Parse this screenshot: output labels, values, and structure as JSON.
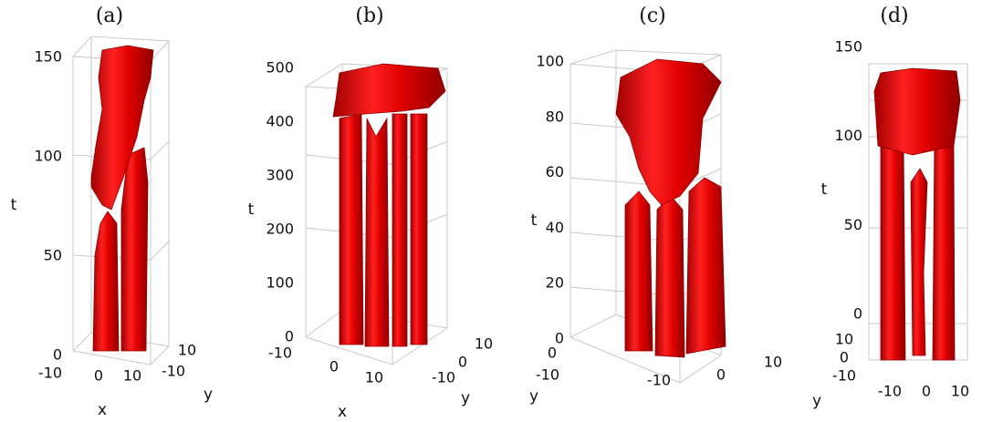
{
  "panels": [
    {
      "label": "(a)",
      "t_label": "t",
      "x_label": "x",
      "y_label": "y",
      "t_ticks": [
        0,
        50,
        100,
        150
      ],
      "x_ticks": [
        -10,
        0,
        10
      ],
      "y_ticks": [
        10,
        -10
      ]
    },
    {
      "label": "(b)",
      "t_label": "t",
      "x_label": "x",
      "y_label": "y",
      "t_ticks": [
        0,
        100,
        200,
        300,
        400,
        500
      ],
      "x_ticks": [
        -10,
        0,
        10
      ],
      "y_ticks": [
        10,
        0,
        -10
      ]
    },
    {
      "label": "(c)",
      "t_label": "t",
      "x_label": null,
      "y_label": "y",
      "t_ticks": [
        0,
        20,
        40,
        60,
        80,
        100
      ],
      "x_ticks": [
        -10,
        0,
        10
      ],
      "y_ticks": [
        0,
        -10
      ]
    },
    {
      "label": "(d)",
      "t_label": "t",
      "x_label": null,
      "y_label": "y",
      "t_ticks": [
        0,
        50,
        100,
        150
      ],
      "x_ticks": [
        -10,
        0,
        10
      ],
      "y_ticks": [
        10,
        0,
        -10
      ]
    }
  ]
}
